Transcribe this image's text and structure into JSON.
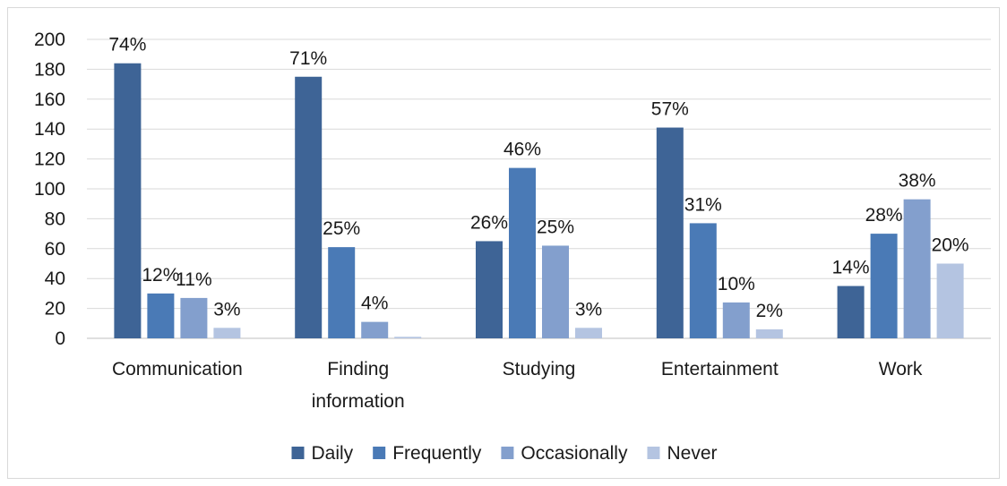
{
  "chart_data": {
    "type": "bar",
    "categories": [
      [
        "Communication"
      ],
      [
        "Finding",
        "information"
      ],
      [
        "Studying"
      ],
      [
        "Entertainment"
      ],
      [
        "Work"
      ]
    ],
    "series": [
      {
        "name": "Daily",
        "color": "#3e6496",
        "values": [
          184,
          175,
          65,
          141,
          35
        ],
        "labels": [
          "74%",
          "71%",
          "26%",
          "57%",
          "14%"
        ]
      },
      {
        "name": "Frequently",
        "color": "#4a7ab6",
        "values": [
          30,
          61,
          114,
          77,
          70
        ],
        "labels": [
          "12%",
          "25%",
          "46%",
          "31%",
          "28%"
        ]
      },
      {
        "name": "Occasionally",
        "color": "#839fcd",
        "values": [
          27,
          11,
          62,
          24,
          93
        ],
        "labels": [
          "11%",
          "4%",
          "25%",
          "10%",
          "38%"
        ]
      },
      {
        "name": "Never",
        "color": "#b4c4e1",
        "values": [
          7,
          1,
          7,
          6,
          50
        ],
        "labels": [
          "3%",
          "",
          "3%",
          "2%",
          "20%"
        ]
      }
    ],
    "yticks": [
      "0",
      "20",
      "40",
      "60",
      "80",
      "100",
      "120",
      "140",
      "160",
      "180",
      "200"
    ],
    "ylim": [
      0,
      200
    ],
    "grid": true,
    "legend_position": "bottom"
  }
}
